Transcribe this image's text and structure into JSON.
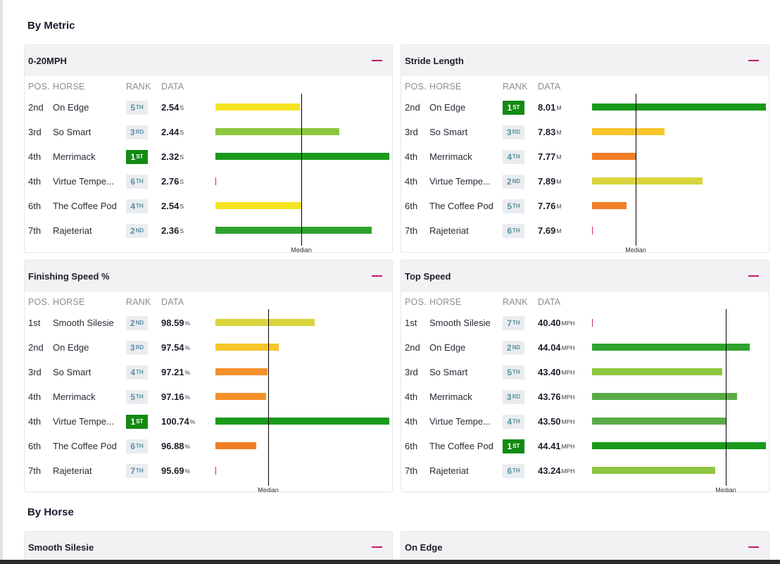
{
  "sections": {
    "by_metric": "By Metric",
    "by_horse": "By Horse"
  },
  "colors": {
    "first_badge": "#138a13",
    "median_line": "#000000",
    "collapse_accent": "#c2186b"
  },
  "metric_cards": [
    {
      "title": "0-20MPH",
      "headers": {
        "pos": "POS.",
        "horse": "HORSE",
        "rank": "RANK",
        "data": "DATA"
      },
      "median_label": "Median",
      "median_frac": 0.493,
      "rows": [
        {
          "pos": "2nd",
          "horse": "On Edge",
          "rank_num": "5",
          "rank_suffix": "TH",
          "value": "2.54",
          "unit": "S",
          "bar_frac": 0.484,
          "color": "#f4e423"
        },
        {
          "pos": "3rd",
          "horse": "So Smart",
          "rank_num": "3",
          "rank_suffix": "RD",
          "value": "2.44",
          "unit": "S",
          "bar_frac": 0.713,
          "color": "#8dc63f"
        },
        {
          "pos": "4th",
          "horse": "Merrimack",
          "rank_num": "1",
          "rank_suffix": "ST",
          "value": "2.32",
          "unit": "S",
          "bar_frac": 1.0,
          "color": "#1a9a1a"
        },
        {
          "pos": "4th",
          "horse": "Virtue Tempe...",
          "rank_num": "6",
          "rank_suffix": "TH",
          "value": "2.76",
          "unit": "S",
          "bar_frac": 0,
          "color": "#d6244f"
        },
        {
          "pos": "6th",
          "horse": "The Coffee Pod",
          "rank_num": "4",
          "rank_suffix": "TH",
          "value": "2.54",
          "unit": "S",
          "bar_frac": 0.492,
          "color": "#f4e423"
        },
        {
          "pos": "7th",
          "horse": "Rajeteriat",
          "rank_num": "2",
          "rank_suffix": "ND",
          "value": "2.36",
          "unit": "S",
          "bar_frac": 0.899,
          "color": "#2ea32e"
        }
      ]
    },
    {
      "title": "Stride Length",
      "headers": {
        "pos": "POS.",
        "horse": "HORSE",
        "rank": "RANK",
        "data": "DATA"
      },
      "median_label": "Median",
      "median_frac": 0.251,
      "rows": [
        {
          "pos": "2nd",
          "horse": "On Edge",
          "rank_num": "1",
          "rank_suffix": "ST",
          "value": "8.01",
          "unit": "M",
          "bar_frac": 1.0,
          "color": "#1a9a1a"
        },
        {
          "pos": "3rd",
          "horse": "So Smart",
          "rank_num": "3",
          "rank_suffix": "RD",
          "value": "7.83",
          "unit": "M",
          "bar_frac": 0.417,
          "color": "#f7c52a"
        },
        {
          "pos": "4th",
          "horse": "Merrimack",
          "rank_num": "4",
          "rank_suffix": "TH",
          "value": "7.77",
          "unit": "M",
          "bar_frac": 0.251,
          "color": "#f07d25"
        },
        {
          "pos": "4th",
          "horse": "Virtue Tempe...",
          "rank_num": "2",
          "rank_suffix": "ND",
          "value": "7.89",
          "unit": "M",
          "bar_frac": 0.636,
          "color": "#d9d43c"
        },
        {
          "pos": "6th",
          "horse": "The Coffee Pod",
          "rank_num": "5",
          "rank_suffix": "TH",
          "value": "7.76",
          "unit": "M",
          "bar_frac": 0.198,
          "color": "#f07d25"
        },
        {
          "pos": "7th",
          "horse": "Rajeteriat",
          "rank_num": "6",
          "rank_suffix": "TH",
          "value": "7.69",
          "unit": "M",
          "bar_frac": 0,
          "color": "#d6244f"
        }
      ]
    },
    {
      "title": "Finishing Speed %",
      "headers": {
        "pos": "POS.",
        "horse": "HORSE",
        "rank": "RANK",
        "data": "DATA"
      },
      "median_label": "Median",
      "median_frac": 0.304,
      "rows": [
        {
          "pos": "1st",
          "horse": "Smooth Silesie",
          "rank_num": "2",
          "rank_suffix": "ND",
          "value": "98.59",
          "unit": "%",
          "bar_frac": 0.571,
          "color": "#d9d43c"
        },
        {
          "pos": "2nd",
          "horse": "On Edge",
          "rank_num": "3",
          "rank_suffix": "RD",
          "value": "97.54",
          "unit": "%",
          "bar_frac": 0.364,
          "color": "#f7c52a"
        },
        {
          "pos": "3rd",
          "horse": "So Smart",
          "rank_num": "4",
          "rank_suffix": "TH",
          "value": "97.21",
          "unit": "%",
          "bar_frac": 0.3,
          "color": "#f4902a"
        },
        {
          "pos": "4th",
          "horse": "Merrimack",
          "rank_num": "5",
          "rank_suffix": "TH",
          "value": "97.16",
          "unit": "%",
          "bar_frac": 0.291,
          "color": "#f4902a"
        },
        {
          "pos": "4th",
          "horse": "Virtue Tempe...",
          "rank_num": "1",
          "rank_suffix": "ST",
          "value": "100.74",
          "unit": "%",
          "bar_frac": 1.0,
          "color": "#1a9a1a"
        },
        {
          "pos": "6th",
          "horse": "The Coffee Pod",
          "rank_num": "6",
          "rank_suffix": "TH",
          "value": "96.88",
          "unit": "%",
          "bar_frac": 0.235,
          "color": "#f07d25"
        },
        {
          "pos": "7th",
          "horse": "Rajeteriat",
          "rank_num": "7",
          "rank_suffix": "TH",
          "value": "95.69",
          "unit": "%",
          "bar_frac": 0,
          "color": "#d6244f"
        }
      ]
    },
    {
      "title": "Top Speed",
      "headers": {
        "pos": "POS.",
        "horse": "HORSE",
        "rank": "RANK",
        "data": "DATA"
      },
      "median_label": "Median",
      "median_frac": 0.769,
      "rows": [
        {
          "pos": "1st",
          "horse": "Smooth Silesie",
          "rank_num": "7",
          "rank_suffix": "TH",
          "value": "40.40",
          "unit": "MPH",
          "bar_frac": 0,
          "color": "#d6244f"
        },
        {
          "pos": "2nd",
          "horse": "On Edge",
          "rank_num": "2",
          "rank_suffix": "ND",
          "value": "44.04",
          "unit": "MPH",
          "bar_frac": 0.907,
          "color": "#2ea32e"
        },
        {
          "pos": "3rd",
          "horse": "So Smart",
          "rank_num": "5",
          "rank_suffix": "TH",
          "value": "43.40",
          "unit": "MPH",
          "bar_frac": 0.749,
          "color": "#8dc63f"
        },
        {
          "pos": "4th",
          "horse": "Merrimack",
          "rank_num": "3",
          "rank_suffix": "RD",
          "value": "43.76",
          "unit": "MPH",
          "bar_frac": 0.834,
          "color": "#5aab46"
        },
        {
          "pos": "4th",
          "horse": "Virtue Tempe...",
          "rank_num": "4",
          "rank_suffix": "TH",
          "value": "43.50",
          "unit": "MPH",
          "bar_frac": 0.769,
          "color": "#5aab46"
        },
        {
          "pos": "6th",
          "horse": "The Coffee Pod",
          "rank_num": "1",
          "rank_suffix": "ST",
          "value": "44.41",
          "unit": "MPH",
          "bar_frac": 1.0,
          "color": "#1a9a1a"
        },
        {
          "pos": "7th",
          "horse": "Rajeteriat",
          "rank_num": "6",
          "rank_suffix": "TH",
          "value": "43.24",
          "unit": "MPH",
          "bar_frac": 0.709,
          "color": "#8dc63f"
        }
      ]
    }
  ],
  "horse_cards": [
    {
      "title": "Smooth Silesie"
    },
    {
      "title": "On Edge"
    }
  ]
}
